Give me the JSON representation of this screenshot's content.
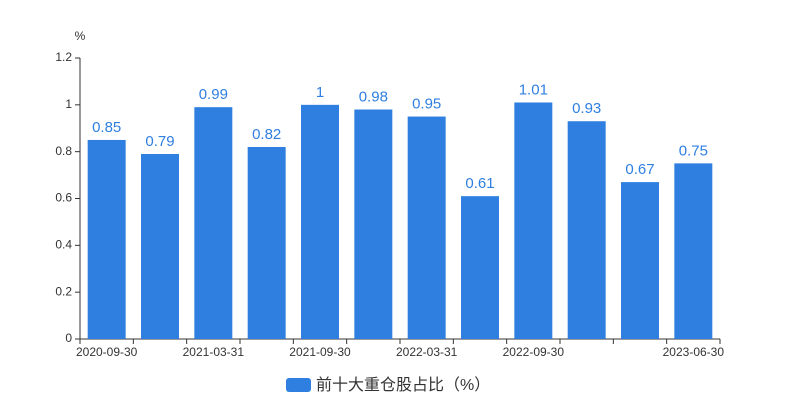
{
  "chart_data": {
    "type": "bar",
    "y_label": "%",
    "categories": [
      "2020-09-30",
      null,
      "2021-03-31",
      null,
      "2021-09-30",
      null,
      "2022-03-31",
      null,
      "2022-09-30",
      null,
      null,
      "2023-06-30"
    ],
    "series": [
      {
        "name": "前十大重仓股占比（%）",
        "color": "#2f7fe0",
        "values": [
          0.85,
          0.79,
          0.99,
          0.82,
          1,
          0.98,
          0.95,
          0.61,
          1.01,
          0.93,
          0.67,
          0.75
        ]
      }
    ],
    "ylim": [
      0,
      1.2
    ],
    "yticks": [
      0,
      0.2,
      0.4,
      0.6,
      0.8,
      1,
      1.2
    ],
    "grid": false,
    "legend": "bottom"
  }
}
